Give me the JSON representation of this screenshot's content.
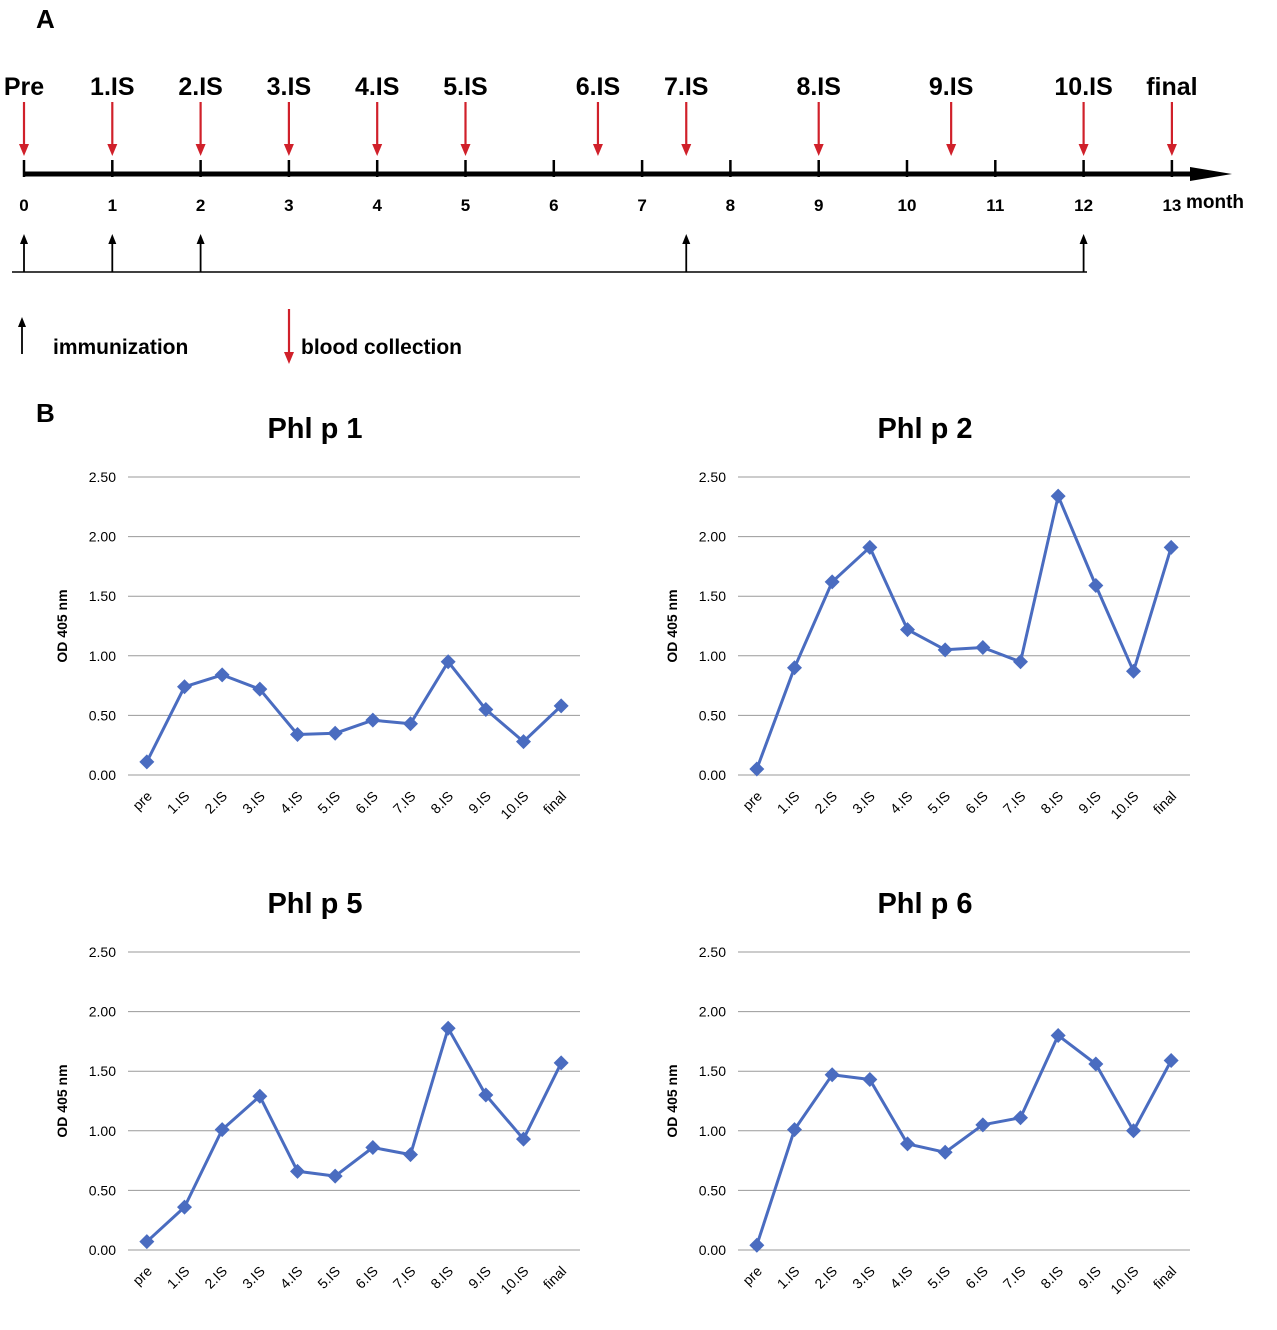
{
  "panel_a": {
    "label": "A",
    "events": [
      {
        "label": "Pre",
        "month": 0
      },
      {
        "label": "1.IS",
        "month": 1
      },
      {
        "label": "2.IS",
        "month": 2
      },
      {
        "label": "3.IS",
        "month": 3
      },
      {
        "label": "4.IS",
        "month": 4
      },
      {
        "label": "5.IS",
        "month": 5
      },
      {
        "label": "6.IS",
        "month": 6.5
      },
      {
        "label": "7.IS",
        "month": 7.5
      },
      {
        "label": "8.IS",
        "month": 9
      },
      {
        "label": "9.IS",
        "month": 10.5
      },
      {
        "label": "10.IS",
        "month": 12
      },
      {
        "label": "final",
        "month": 13
      }
    ],
    "month_ticks": [
      "0",
      "1",
      "2",
      "3",
      "4",
      "5",
      "6",
      "7",
      "8",
      "9",
      "10",
      "11",
      "12",
      "13"
    ],
    "axis_unit": "month",
    "immunization_months": [
      0,
      1,
      2,
      7.5,
      12
    ],
    "legend_immunization": "immunization",
    "legend_blood": "blood collection",
    "colors": {
      "blood": "#d0202a",
      "immunization": "#000000"
    }
  },
  "panel_b": {
    "label": "B"
  },
  "chart_data": [
    {
      "type": "line",
      "title": "Phl p 1",
      "ylabel": "OD 405 nm",
      "ylim": [
        0,
        2.5
      ],
      "yticks": [
        "0.00",
        "0.50",
        "1.00",
        "1.50",
        "2.00",
        "2.50"
      ],
      "categories": [
        "pre",
        "1.IS",
        "2.IS",
        "3.IS",
        "4.IS",
        "5.IS",
        "6.IS",
        "7.IS",
        "8.IS",
        "9.IS",
        "10.IS",
        "final"
      ],
      "series": [
        {
          "values": [
            0.11,
            0.74,
            0.84,
            0.72,
            0.34,
            0.35,
            0.46,
            0.43,
            0.95,
            0.55,
            0.28,
            0.58
          ],
          "color": "#4a6cc0"
        }
      ]
    },
    {
      "type": "line",
      "title": "Phl p 2",
      "ylabel": "OD 405 nm",
      "ylim": [
        0,
        2.5
      ],
      "yticks": [
        "0.00",
        "0.50",
        "1.00",
        "1.50",
        "2.00",
        "2.50"
      ],
      "categories": [
        "pre",
        "1.IS",
        "2.IS",
        "3.IS",
        "4.IS",
        "5.IS",
        "6.IS",
        "7.IS",
        "8.IS",
        "9.IS",
        "10.IS",
        "final"
      ],
      "series": [
        {
          "values": [
            0.05,
            0.9,
            1.62,
            1.91,
            1.22,
            1.05,
            1.07,
            0.95,
            2.34,
            1.59,
            0.87,
            1.91
          ],
          "color": "#4a6cc0"
        }
      ]
    },
    {
      "type": "line",
      "title": "Phl p 5",
      "ylabel": "OD 405 nm",
      "ylim": [
        0,
        2.5
      ],
      "yticks": [
        "0.00",
        "0.50",
        "1.00",
        "1.50",
        "2.00",
        "2.50"
      ],
      "categories": [
        "pre",
        "1.IS",
        "2.IS",
        "3.IS",
        "4.IS",
        "5.IS",
        "6.IS",
        "7.IS",
        "8.IS",
        "9.IS",
        "10.IS",
        "final"
      ],
      "series": [
        {
          "values": [
            0.07,
            0.36,
            1.01,
            1.29,
            0.66,
            0.62,
            0.86,
            0.8,
            1.86,
            1.3,
            0.93,
            1.57
          ],
          "color": "#4a6cc0"
        }
      ]
    },
    {
      "type": "line",
      "title": "Phl p 6",
      "ylabel": "OD 405 nm",
      "ylim": [
        0,
        2.5
      ],
      "yticks": [
        "0.00",
        "0.50",
        "1.00",
        "1.50",
        "2.00",
        "2.50"
      ],
      "categories": [
        "pre",
        "1.IS",
        "2.IS",
        "3.IS",
        "4.IS",
        "5.IS",
        "6.IS",
        "7.IS",
        "8.IS",
        "9.IS",
        "10.IS",
        "final"
      ],
      "series": [
        {
          "values": [
            0.04,
            1.01,
            1.47,
            1.43,
            0.89,
            0.82,
            1.05,
            1.11,
            1.8,
            1.56,
            1.0,
            1.59
          ],
          "color": "#4a6cc0"
        }
      ]
    }
  ]
}
